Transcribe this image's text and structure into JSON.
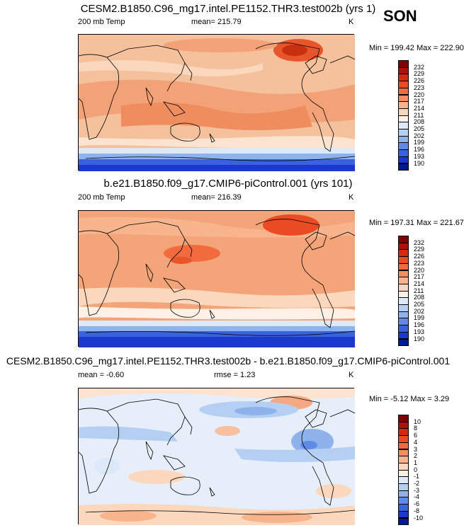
{
  "season": "SON",
  "panels": [
    {
      "title": "CESM2.B1850.C96_mg17.intel.PE1152.THR3.test002b (yrs 1)",
      "left_label": "200 mb Temp",
      "center_label": "mean= 215.79",
      "units": "K",
      "minmax": "Min = 199.42 Max = 222.90"
    },
    {
      "title": "b.e21.B1850.f09_g17.CMIP6-piControl.001 (yrs 101)",
      "left_label": "200 mb Temp",
      "center_label": "mean= 216.39",
      "units": "K",
      "minmax": "Min = 197.31 Max = 221.67"
    },
    {
      "title": "CESM2.B1850.C96_mg17.intel.PE1152.THR3.test002b - b.e21.B1850.f09_g17.CMIP6-piControl.001",
      "left_label": "mean =  -0.60",
      "center_label": "rmse =   1.23",
      "units": "K",
      "minmax": "Min =  -5.12 Max =   3.29"
    }
  ],
  "colorbars": {
    "abs": {
      "labels": [
        "232",
        "229",
        "226",
        "223",
        "220",
        "217",
        "214",
        "211",
        "208",
        "205",
        "202",
        "199",
        "196",
        "193",
        "190"
      ],
      "colors": [
        "#7f0000",
        "#b0100e",
        "#d52a0e",
        "#ea4b22",
        "#f26b3e",
        "#f58f60",
        "#f8b48d",
        "#fbd8bd",
        "#fdf1e6",
        "#dce9f8",
        "#b4cff2",
        "#8eb2ec",
        "#5f8ae6",
        "#3a62dd",
        "#1b3acd",
        "#001a94"
      ]
    },
    "diff": {
      "labels": [
        "10",
        "8",
        "6",
        "4",
        "3",
        "2",
        "1",
        "0",
        "-1",
        "-2",
        "-3",
        "-4",
        "-6",
        "-8",
        "-10"
      ],
      "colors": [
        "#7f0000",
        "#b0100e",
        "#d52a0e",
        "#ea4b22",
        "#f26b3e",
        "#f58f60",
        "#f8b48d",
        "#fbd8bd",
        "#fdf1e6",
        "#dce9f8",
        "#b4cff2",
        "#8eb2ec",
        "#5f8ae6",
        "#3a62dd",
        "#1b3acd",
        "#001a94"
      ]
    }
  }
}
